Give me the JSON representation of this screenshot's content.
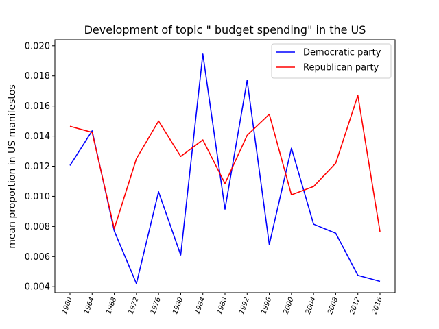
{
  "chart_data": {
    "type": "line",
    "title": "Development of topic \" budget spending\" in the US",
    "xlabel": "",
    "ylabel": "mean proportion in US manifestos",
    "categories": [
      "1960",
      "1964",
      "1968",
      "1972",
      "1976",
      "1980",
      "1984",
      "1988",
      "1992",
      "1996",
      "2000",
      "2004",
      "2008",
      "2012",
      "2016"
    ],
    "ylim": [
      0.0036,
      0.0204
    ],
    "yticks": [
      "0.004",
      "0.006",
      "0.008",
      "0.010",
      "0.012",
      "0.014",
      "0.016",
      "0.018",
      "0.020"
    ],
    "grid": false,
    "legend_position": "top-right",
    "series": [
      {
        "name": "Democratic party",
        "color": "#0000ff",
        "values": [
          0.01205,
          0.01435,
          0.0077,
          0.0042,
          0.0103,
          0.0061,
          0.01945,
          0.00915,
          0.0177,
          0.0068,
          0.0132,
          0.00815,
          0.00755,
          0.00475,
          0.00435
        ]
      },
      {
        "name": "Republican party",
        "color": "#ff0000",
        "values": [
          0.01465,
          0.01425,
          0.00785,
          0.0125,
          0.015,
          0.01265,
          0.01375,
          0.01085,
          0.01405,
          0.01545,
          0.0101,
          0.01065,
          0.0122,
          0.0167,
          0.00765
        ]
      }
    ]
  }
}
